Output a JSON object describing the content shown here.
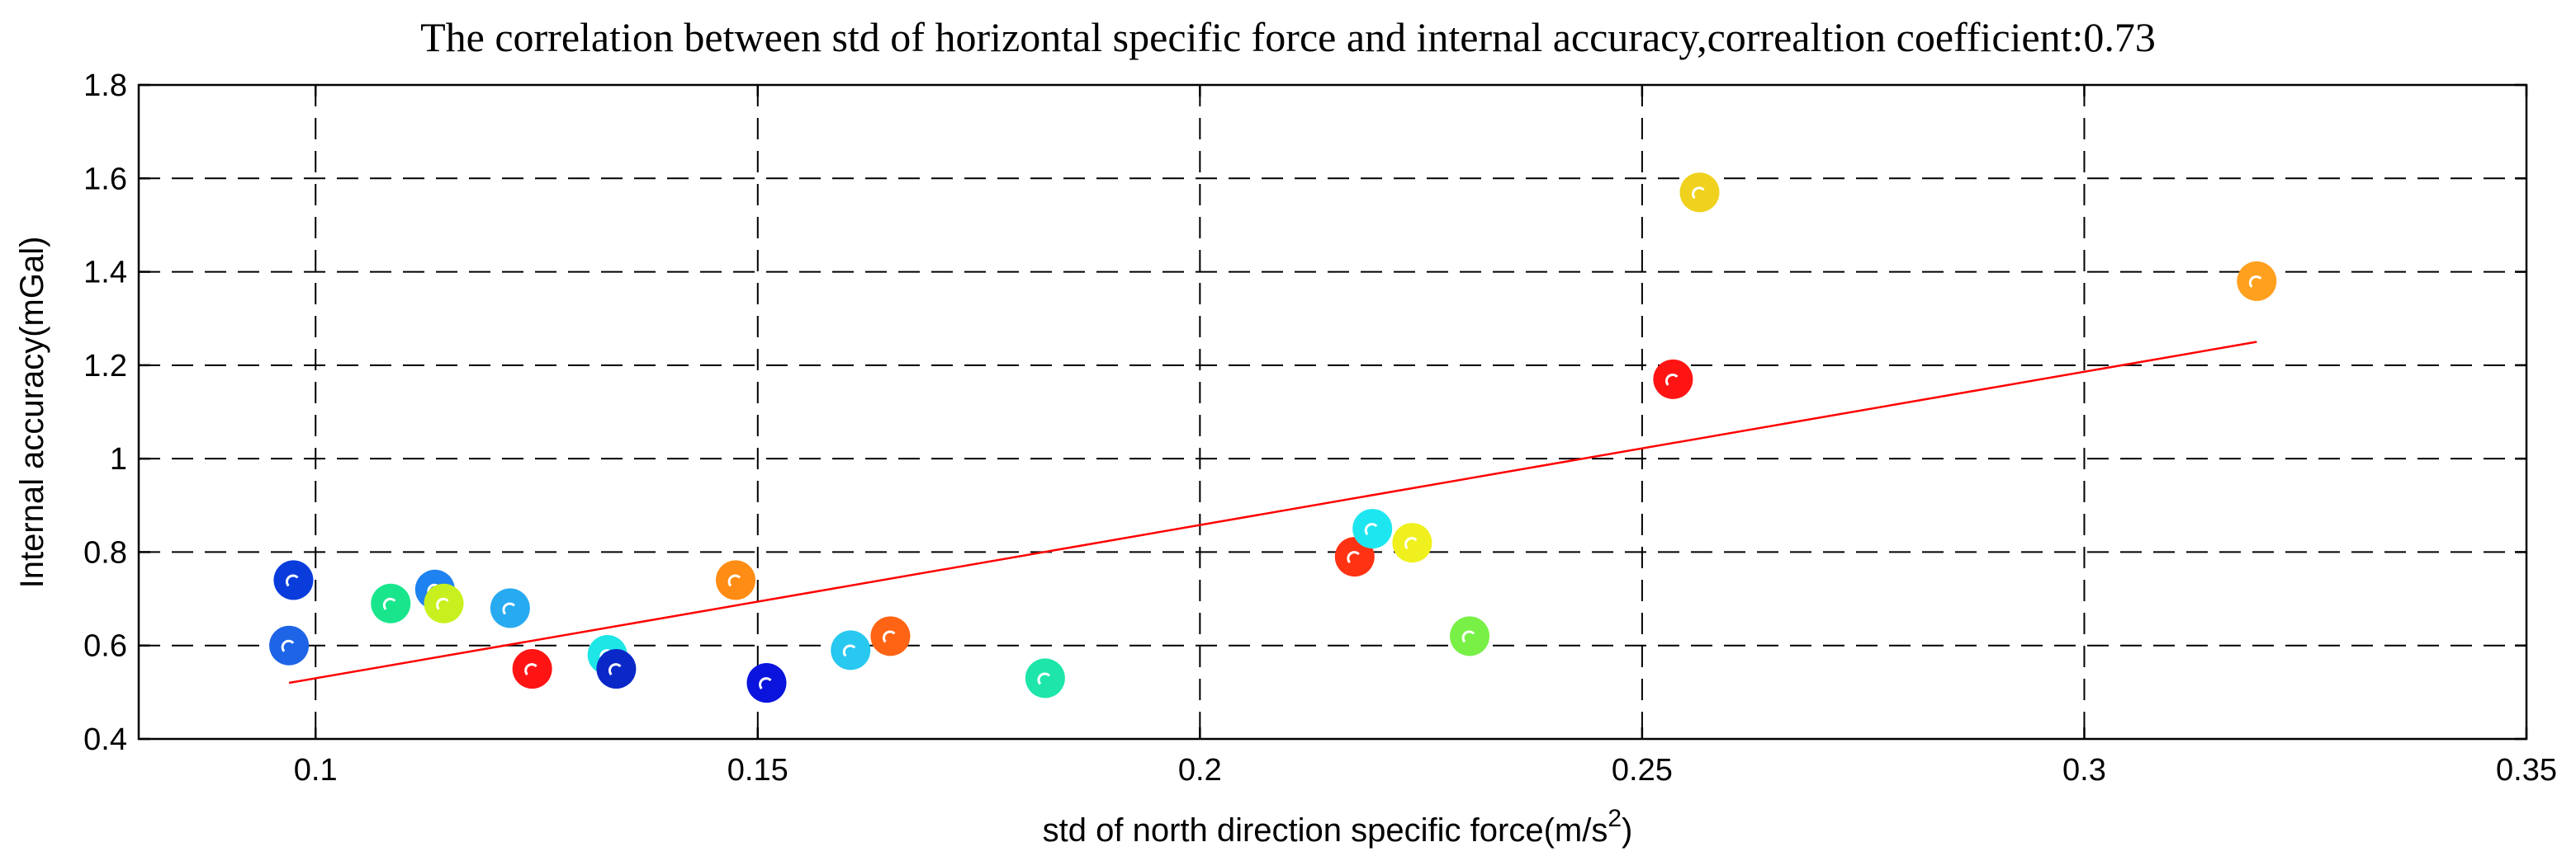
{
  "chart_data": {
    "type": "scatter",
    "title": "The correlation between std of horizontal specific force and internal accuracy,correaltion coefficient:0.73",
    "xlabel": "std of north direction specific force(m/s",
    "xlabel_sup": "2",
    "xlabel_suffix": ")",
    "ylabel": "Internal accuracy(mGal)",
    "xlim": [
      0.08,
      0.35
    ],
    "ylim": [
      0.4,
      1.8
    ],
    "xticks": [
      0.1,
      0.15,
      0.2,
      0.25,
      0.3,
      0.35
    ],
    "xtick_labels": [
      "0.1",
      "0.15",
      "0.2",
      "0.25",
      "0.3",
      "0.35"
    ],
    "yticks": [
      0.4,
      0.6,
      0.8,
      1.0,
      1.2,
      1.4,
      1.6,
      1.8
    ],
    "ytick_labels": [
      "0.4",
      "0.6",
      "0.8",
      "1",
      "1.2",
      "1.4",
      "1.6",
      "1.8"
    ],
    "grid": true,
    "points": [
      {
        "x": 0.0975,
        "y": 0.74,
        "color": "#0a3cdc"
      },
      {
        "x": 0.097,
        "y": 0.6,
        "color": "#1e64e6"
      },
      {
        "x": 0.1085,
        "y": 0.69,
        "color": "#19e68c"
      },
      {
        "x": 0.1135,
        "y": 0.72,
        "color": "#1e82f0"
      },
      {
        "x": 0.1145,
        "y": 0.69,
        "color": "#c8f01e"
      },
      {
        "x": 0.122,
        "y": 0.68,
        "color": "#28aaf0"
      },
      {
        "x": 0.1245,
        "y": 0.55,
        "color": "#ff1414"
      },
      {
        "x": 0.133,
        "y": 0.58,
        "color": "#1ee6e6"
      },
      {
        "x": 0.134,
        "y": 0.55,
        "color": "#0a28c8"
      },
      {
        "x": 0.1475,
        "y": 0.74,
        "color": "#ff8c14"
      },
      {
        "x": 0.151,
        "y": 0.52,
        "color": "#0a14dc"
      },
      {
        "x": 0.1605,
        "y": 0.59,
        "color": "#28c8f0"
      },
      {
        "x": 0.165,
        "y": 0.62,
        "color": "#ff6414"
      },
      {
        "x": 0.1825,
        "y": 0.53,
        "color": "#1ee6aa"
      },
      {
        "x": 0.2175,
        "y": 0.79,
        "color": "#ff3214"
      },
      {
        "x": 0.2195,
        "y": 0.85,
        "color": "#1ee6f0"
      },
      {
        "x": 0.224,
        "y": 0.82,
        "color": "#f0f01e"
      },
      {
        "x": 0.2305,
        "y": 0.62,
        "color": "#78f046"
      },
      {
        "x": 0.2535,
        "y": 1.17,
        "color": "#ff1414"
      },
      {
        "x": 0.2565,
        "y": 1.57,
        "color": "#f0d21e"
      },
      {
        "x": 0.3195,
        "y": 1.38,
        "color": "#ffa01e"
      }
    ],
    "fit_line": {
      "x": [
        0.097,
        0.3195
      ],
      "y": [
        0.52,
        1.25
      ],
      "color": "#ff0000"
    }
  }
}
